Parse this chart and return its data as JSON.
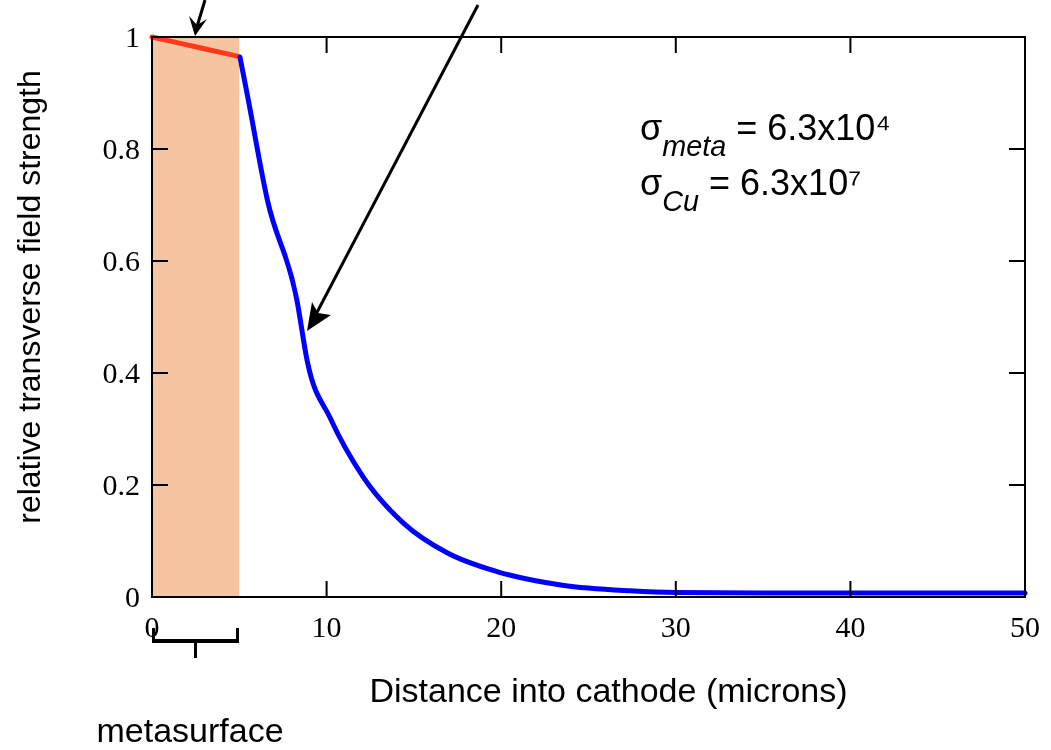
{
  "chart_data": {
    "type": "line",
    "xlabel": "Distance into cathode (microns)",
    "ylabel": "relative transverse field strength",
    "xlim": [
      0,
      50
    ],
    "xticks": [
      0,
      10,
      20,
      30,
      40,
      50
    ],
    "ylim": [
      0,
      1
    ],
    "yticks": [
      0,
      0.2,
      0.4,
      0.6,
      0.8,
      1
    ],
    "grid": false,
    "series": [
      {
        "color": "#ff3a1a",
        "x": [
          0,
          1,
          2,
          3,
          4,
          5
        ],
        "values": [
          1,
          0.993,
          0.986,
          0.979,
          0.972,
          0.965
        ]
      },
      {
        "color": "#0000ff",
        "x": [
          5.04,
          5.5,
          6.6,
          8.3,
          8.9,
          10.2,
          12.1,
          14.4,
          16.9,
          19.8,
          23.5,
          27.4,
          30,
          35,
          40,
          45,
          50
        ],
        "values": [
          0.964,
          0.89,
          0.71,
          0.53,
          0.42,
          0.32,
          0.214,
          0.132,
          0.079,
          0.045,
          0.021,
          0.011,
          0.008,
          0.007,
          0.007,
          0.007,
          0.007
        ]
      }
    ],
    "bands": [
      {
        "axis": "x",
        "from": 0,
        "to": 5,
        "color": "#f5c4a0"
      }
    ],
    "annotations": [
      "σ$_{meta}$ = 6.3x10⁴",
      "σ$_{Cu}$ = 6.3x10⁷",
      "metasurface"
    ]
  }
}
